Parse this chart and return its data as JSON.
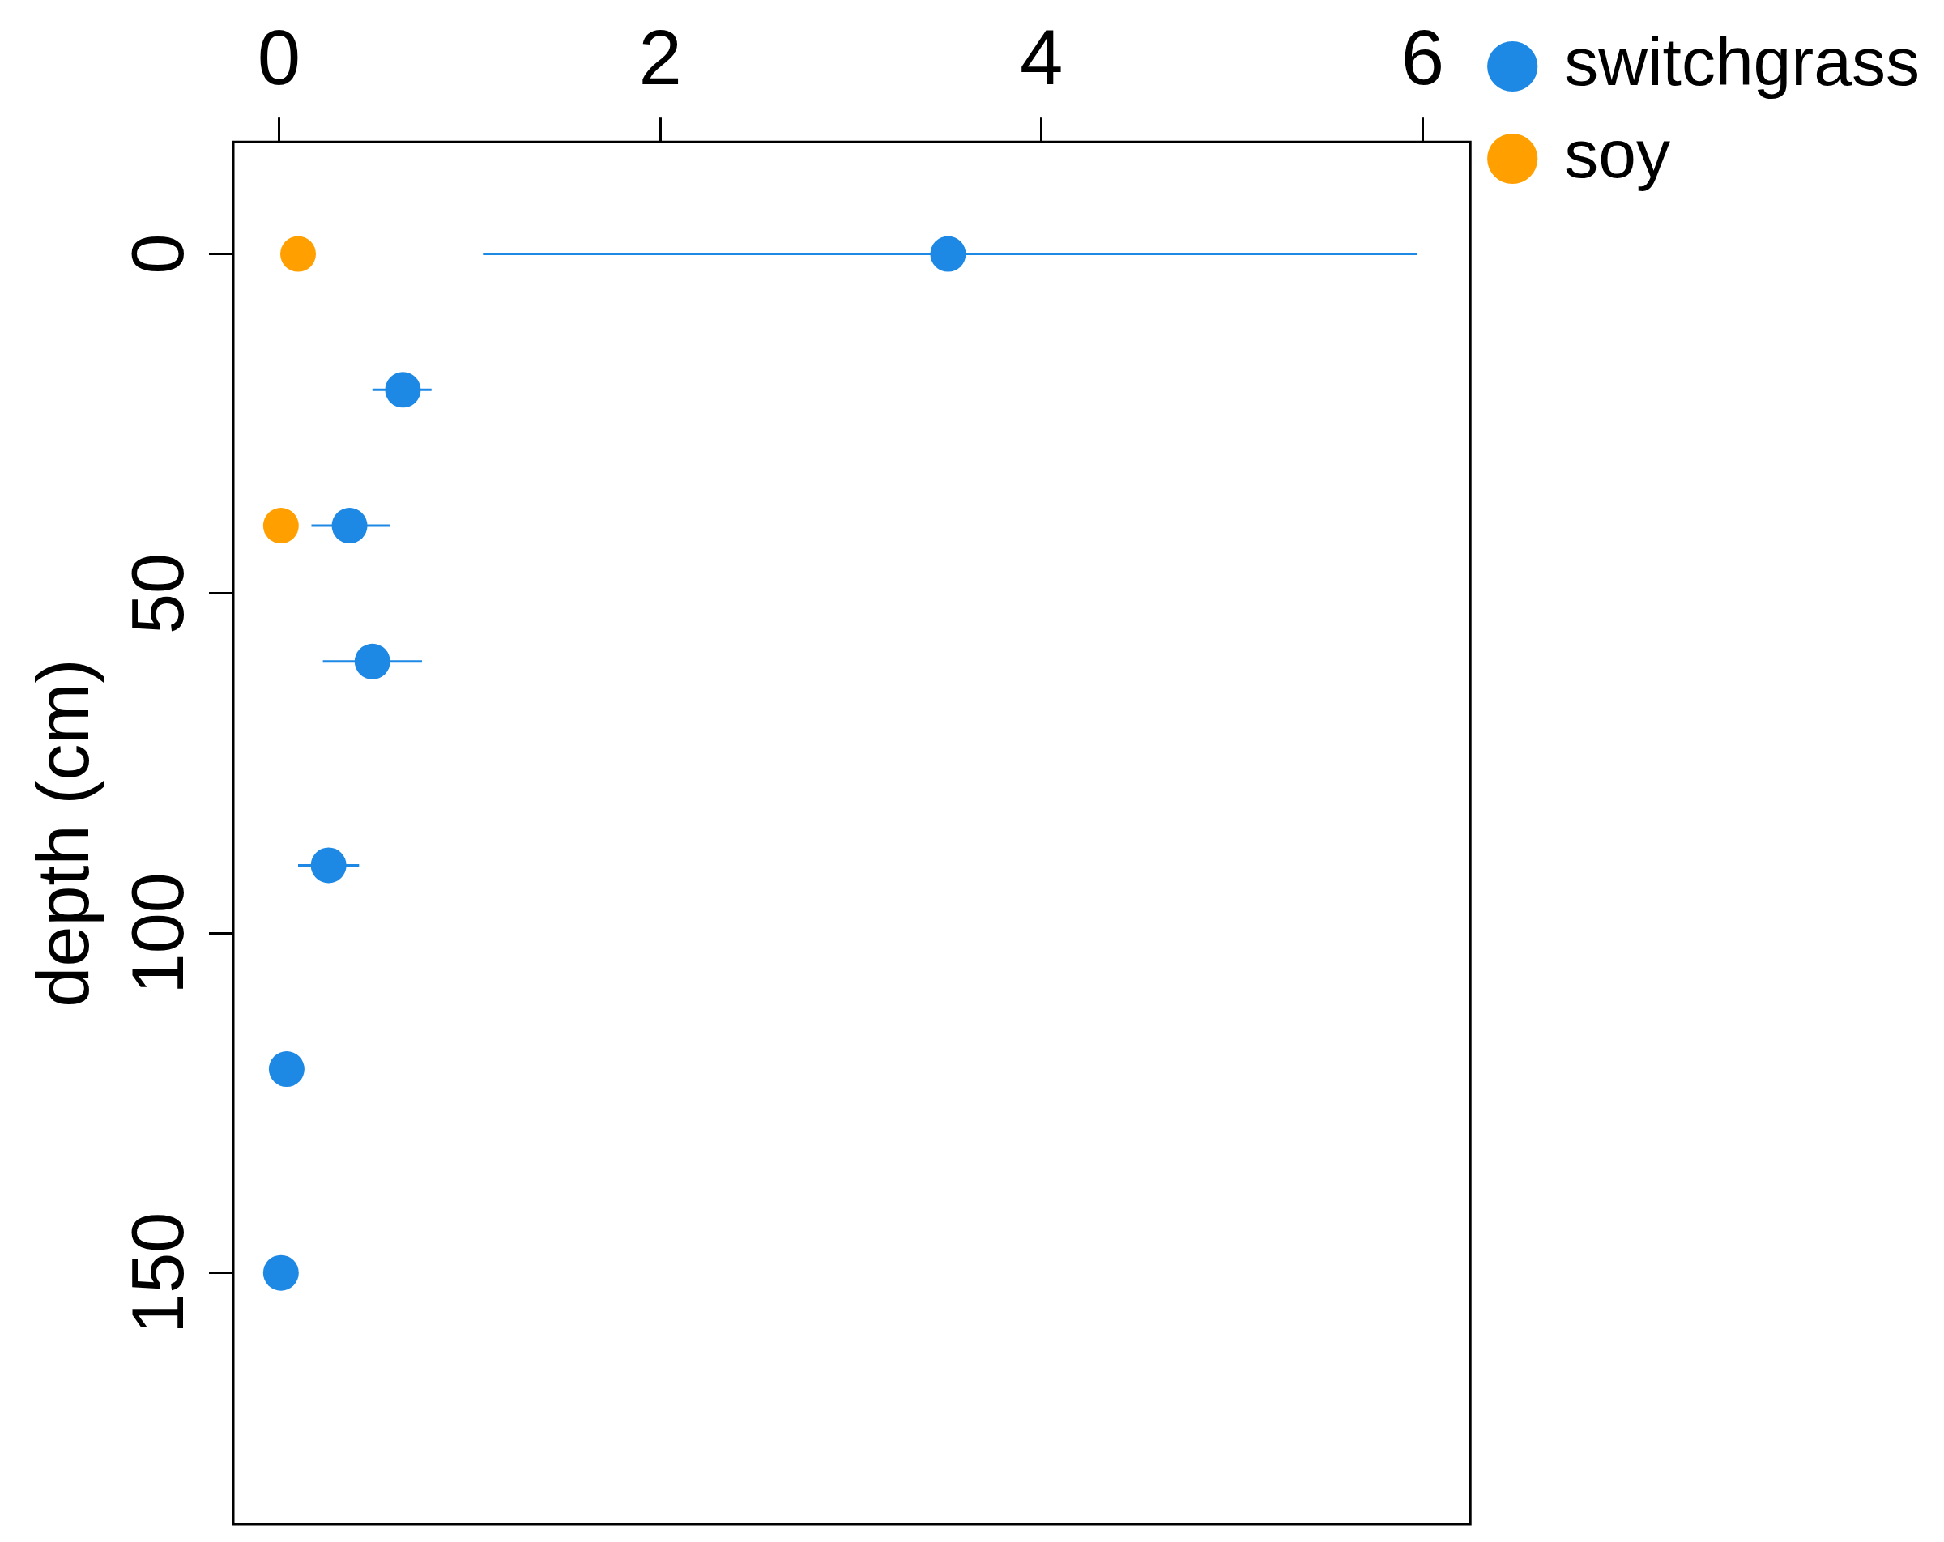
{
  "chart_data": {
    "type": "scatter",
    "ylabel": "depth (cm)",
    "xlim": [
      -0.24,
      6.25
    ],
    "xticks": [
      0,
      2,
      4,
      6
    ],
    "ylim": [
      187,
      -16.5
    ],
    "yticks": [
      0,
      50,
      100,
      150
    ],
    "grid": false,
    "legend": "right",
    "marker": "circle",
    "series": [
      {
        "name": "switchgrass",
        "color": "#1e88e5",
        "x": [
          3.51,
          0.65,
          0.37,
          0.49,
          0.26,
          0.04,
          0.01
        ],
        "values": [
          0,
          20,
          40,
          60,
          90,
          120,
          150
        ],
        "xerrors": [
          [
            1.07,
            5.97
          ],
          [
            0.49,
            0.8
          ],
          [
            0.17,
            0.58
          ],
          [
            0.23,
            0.75
          ],
          [
            0.1,
            0.42
          ],
          null,
          null
        ]
      },
      {
        "name": "soy",
        "color": "#ffa000",
        "x": [
          0.1,
          0.01
        ],
        "values": [
          0,
          40
        ]
      }
    ]
  }
}
